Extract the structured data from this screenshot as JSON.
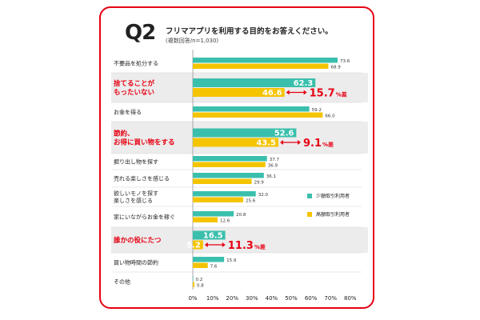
{
  "header": {
    "number": "Q2",
    "title": "フリマアプリを利用する目的をお答えください。",
    "subtitle": "(複数回答/n=1,030)"
  },
  "colors": {
    "low": "#3bbfad",
    "high": "#f5c400",
    "accent": "#e60012",
    "highlight_bg": "#ececec"
  },
  "chart_data": {
    "type": "bar",
    "orientation": "horizontal",
    "categories": [
      "不要品を処分する",
      "捨てることが\nもったいない",
      "お金を得る",
      "節約、\nお得に買い物をする",
      "掘り出し物を探す",
      "売れる楽しさを感じる",
      "欲しいモノを探す\n楽しさを感じる",
      "家にいながらお金を稼ぐ",
      "誰かの役にたつ",
      "買い物時間の節約",
      "その他"
    ],
    "highlighted": [
      false,
      true,
      false,
      true,
      false,
      false,
      false,
      false,
      true,
      false,
      false
    ],
    "series": [
      {
        "name": "少額取引利用者",
        "values": [
          73.6,
          62.3,
          59.2,
          52.6,
          37.7,
          36.1,
          32.0,
          20.8,
          16.5,
          15.9,
          0.2
        ]
      },
      {
        "name": "高額取引利用者",
        "values": [
          68.9,
          46.6,
          66.0,
          43.5,
          36.9,
          29.9,
          25.6,
          12.6,
          5.2,
          7.6,
          0.8
        ]
      }
    ],
    "value_labels": [
      [
        "73.6",
        "62.3",
        "59.2",
        "52.6",
        "37.7",
        "36.1",
        "32.0",
        "20.8",
        "16.5",
        "15.9",
        "0.2"
      ],
      [
        "68.9",
        "46.6",
        "66.0",
        "43.5",
        "36.9",
        "29.9",
        "25.6",
        "12.6",
        "5.2",
        "7.6",
        "0.8"
      ]
    ],
    "annotations": [
      {
        "category": 1,
        "value": "15.7",
        "unit": "%差"
      },
      {
        "category": 3,
        "value": "9.1",
        "unit": "%差"
      },
      {
        "category": 8,
        "value": "11.3",
        "unit": "%差"
      }
    ],
    "x_ticks": [
      "0%",
      "10%",
      "20%",
      "30%",
      "40%",
      "50%",
      "60%",
      "70%",
      "80%"
    ],
    "xlim": [
      0,
      80
    ],
    "legend_position": "right"
  }
}
